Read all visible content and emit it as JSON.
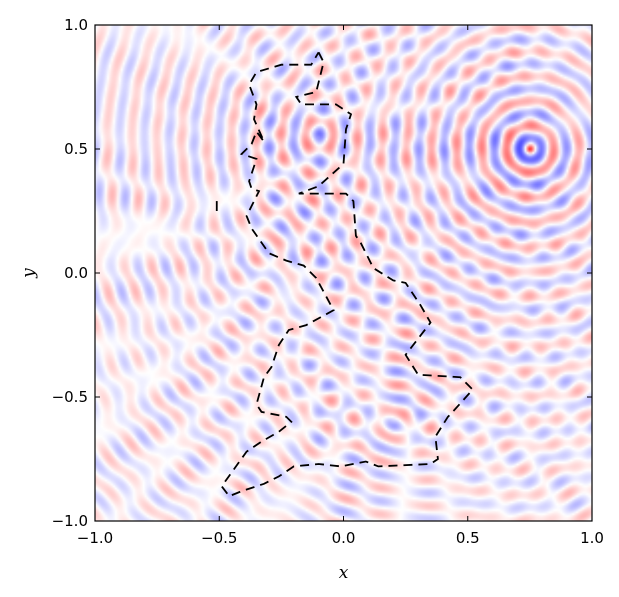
{
  "chart_data": {
    "type": "heatmap",
    "title": "",
    "xlabel": "x",
    "ylabel": "y",
    "xlim": [
      -1.0,
      1.0
    ],
    "ylim": [
      -1.0,
      1.0
    ],
    "grid": false,
    "colormap": "bwr",
    "colors": {
      "positive": "#ff0000",
      "negative": "#0000ff",
      "zero": "#ffffff",
      "boundary": "#000000"
    },
    "source": {
      "x": 0.75,
      "y": 0.5
    },
    "x_ticks": [
      -1.0,
      -0.5,
      0.0,
      0.5,
      1.0
    ],
    "y_ticks": [
      -1.0,
      -0.5,
      0.0,
      0.5,
      1.0
    ],
    "x_tick_labels": [
      "−1.0",
      "−0.5",
      "0.0",
      "0.5",
      "1.0"
    ],
    "y_tick_labels": [
      "−1.0",
      "−0.5",
      "0.0",
      "0.5",
      "1.0"
    ],
    "boundary_style": "dashed",
    "boundary_polygon": [
      [
        -0.1,
        0.89
      ],
      [
        -0.08,
        0.85
      ],
      [
        -0.11,
        0.73
      ],
      [
        -0.19,
        0.71
      ],
      [
        -0.17,
        0.68
      ],
      [
        -0.03,
        0.68
      ],
      [
        0.03,
        0.64
      ],
      [
        0.01,
        0.58
      ],
      [
        0.0,
        0.44
      ],
      [
        -0.1,
        0.35
      ],
      [
        -0.18,
        0.32
      ],
      [
        0.01,
        0.32
      ],
      [
        0.04,
        0.29
      ],
      [
        0.05,
        0.15
      ],
      [
        0.07,
        0.12
      ],
      [
        0.1,
        0.06
      ],
      [
        0.12,
        0.02
      ],
      [
        0.2,
        -0.03
      ],
      [
        0.25,
        -0.04
      ],
      [
        0.31,
        -0.13
      ],
      [
        0.35,
        -0.2
      ],
      [
        0.25,
        -0.33
      ],
      [
        0.3,
        -0.41
      ],
      [
        0.47,
        -0.42
      ],
      [
        0.52,
        -0.47
      ],
      [
        0.43,
        -0.57
      ],
      [
        0.42,
        -0.58
      ],
      [
        0.37,
        -0.66
      ],
      [
        0.38,
        -0.75
      ],
      [
        0.35,
        -0.77
      ],
      [
        0.14,
        -0.78
      ],
      [
        0.09,
        -0.76
      ],
      [
        -0.01,
        -0.78
      ],
      [
        -0.1,
        -0.77
      ],
      [
        -0.2,
        -0.78
      ],
      [
        -0.26,
        -0.82
      ],
      [
        -0.32,
        -0.85
      ],
      [
        -0.41,
        -0.88
      ],
      [
        -0.46,
        -0.9
      ],
      [
        -0.49,
        -0.86
      ],
      [
        -0.39,
        -0.72
      ],
      [
        -0.33,
        -0.68
      ],
      [
        -0.26,
        -0.64
      ],
      [
        -0.21,
        -0.6
      ],
      [
        -0.23,
        -0.58
      ],
      [
        -0.33,
        -0.56
      ],
      [
        -0.35,
        -0.53
      ],
      [
        -0.32,
        -0.42
      ],
      [
        -0.29,
        -0.38
      ],
      [
        -0.26,
        -0.29
      ],
      [
        -0.22,
        -0.23
      ],
      [
        -0.15,
        -0.21
      ],
      [
        -0.04,
        -0.15
      ],
      [
        -0.11,
        -0.02
      ],
      [
        -0.16,
        0.03
      ],
      [
        -0.23,
        0.05
      ],
      [
        -0.3,
        0.08
      ],
      [
        -0.37,
        0.18
      ],
      [
        -0.39,
        0.23
      ],
      [
        -0.34,
        0.33
      ],
      [
        -0.37,
        0.34
      ],
      [
        -0.38,
        0.37
      ],
      [
        -0.35,
        0.46
      ],
      [
        -0.41,
        0.48
      ],
      [
        -0.37,
        0.52
      ],
      [
        -0.35,
        0.57
      ],
      [
        -0.32,
        0.53
      ],
      [
        -0.36,
        0.62
      ],
      [
        -0.35,
        0.68
      ],
      [
        -0.38,
        0.76
      ],
      [
        -0.35,
        0.81
      ],
      [
        -0.25,
        0.84
      ],
      [
        -0.13,
        0.84
      ],
      [
        -0.1,
        0.89
      ]
    ],
    "boundary_segment": [
      [
        -0.51,
        0.29
      ],
      [
        -0.51,
        0.25
      ]
    ]
  }
}
